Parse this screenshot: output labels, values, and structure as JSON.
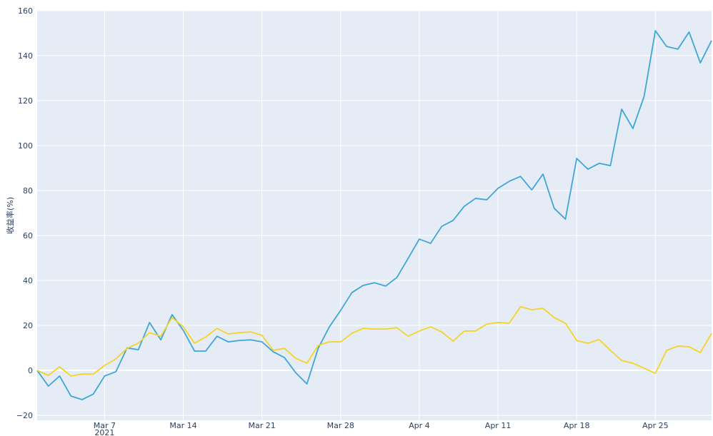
{
  "chart_data": {
    "type": "line",
    "y_label": "收益率(%)",
    "x": [
      "2021-03-01",
      "2021-03-02",
      "2021-03-03",
      "2021-03-04",
      "2021-03-05",
      "2021-03-06",
      "2021-03-07",
      "2021-03-08",
      "2021-03-09",
      "2021-03-10",
      "2021-03-11",
      "2021-03-12",
      "2021-03-13",
      "2021-03-14",
      "2021-03-15",
      "2021-03-16",
      "2021-03-17",
      "2021-03-18",
      "2021-03-19",
      "2021-03-20",
      "2021-03-21",
      "2021-03-22",
      "2021-03-23",
      "2021-03-24",
      "2021-03-25",
      "2021-03-26",
      "2021-03-27",
      "2021-03-28",
      "2021-03-29",
      "2021-03-30",
      "2021-03-31",
      "2021-04-01",
      "2021-04-02",
      "2021-04-03",
      "2021-04-04",
      "2021-04-05",
      "2021-04-06",
      "2021-04-07",
      "2021-04-08",
      "2021-04-09",
      "2021-04-10",
      "2021-04-11",
      "2021-04-12",
      "2021-04-13",
      "2021-04-14",
      "2021-04-15",
      "2021-04-16",
      "2021-04-17",
      "2021-04-18",
      "2021-04-19",
      "2021-04-20",
      "2021-04-21",
      "2021-04-22",
      "2021-04-23",
      "2021-04-24",
      "2021-04-25",
      "2021-04-26",
      "2021-04-27",
      "2021-04-28",
      "2021-04-29",
      "2021-04-30"
    ],
    "series": [
      {
        "color": "#3fa6d6",
        "values": [
          0,
          -7,
          -2.5,
          -11.4,
          -13,
          -10.5,
          -2.5,
          -0.6,
          10,
          9.2,
          21.3,
          13.6,
          24.8,
          17.8,
          8.6,
          8.6,
          15.2,
          12.7,
          13.3,
          13.6,
          12.7,
          8.3,
          5.7,
          -1,
          -6,
          9.8,
          19.4,
          26.7,
          34.6,
          37.8,
          39,
          37.5,
          41.3,
          49.8,
          58.4,
          56.5,
          64.1,
          66.7,
          73,
          76.5,
          75.9,
          81,
          84.1,
          86.3,
          80.3,
          87.3,
          72.1,
          67.3,
          94.3,
          89.5,
          92.1,
          91.1,
          116.2,
          107.6,
          121.9,
          151.1,
          144.1,
          142.9,
          150.5,
          136.8,
          146.7
        ]
      },
      {
        "color": "#f5d327",
        "values": [
          0,
          -2.2,
          1.6,
          -2.5,
          -1.6,
          -1.6,
          2.2,
          5.1,
          9.8,
          12.1,
          16.8,
          15.2,
          23.5,
          19.4,
          12.1,
          14.9,
          18.7,
          16.2,
          16.8,
          17.1,
          15.6,
          8.9,
          9.8,
          5.4,
          3.2,
          11.1,
          12.7,
          12.7,
          16.5,
          18.7,
          18.4,
          18.4,
          19,
          15.2,
          17.5,
          19.4,
          17.1,
          13,
          17.5,
          17.5,
          20.6,
          21.3,
          21,
          28.3,
          27,
          27.6,
          23.5,
          21,
          13.3,
          12.1,
          13.7,
          8.9,
          4.4,
          3.2,
          1,
          -1.3,
          8.9,
          10.8,
          10.5,
          7.9,
          16.5
        ]
      }
    ],
    "xlim": [
      "2021-03-01",
      "2021-04-30"
    ],
    "xticks": [
      {
        "value": "2021-03-07",
        "label": "Mar 7",
        "sublabel": "2021"
      },
      {
        "value": "2021-03-14",
        "label": "Mar 14"
      },
      {
        "value": "2021-03-21",
        "label": "Mar 21"
      },
      {
        "value": "2021-03-28",
        "label": "Mar 28"
      },
      {
        "value": "2021-04-04",
        "label": "Apr 4"
      },
      {
        "value": "2021-04-11",
        "label": "Apr 11"
      },
      {
        "value": "2021-04-18",
        "label": "Apr 18"
      },
      {
        "value": "2021-04-25",
        "label": "Apr 25"
      }
    ],
    "ylim": [
      -22.2,
      160
    ],
    "yticks": [
      {
        "value": -20,
        "label": "−20"
      },
      0,
      20,
      40,
      60,
      80,
      100,
      120,
      140,
      160
    ],
    "grid": true,
    "plot_background": "#e5ecf6"
  }
}
